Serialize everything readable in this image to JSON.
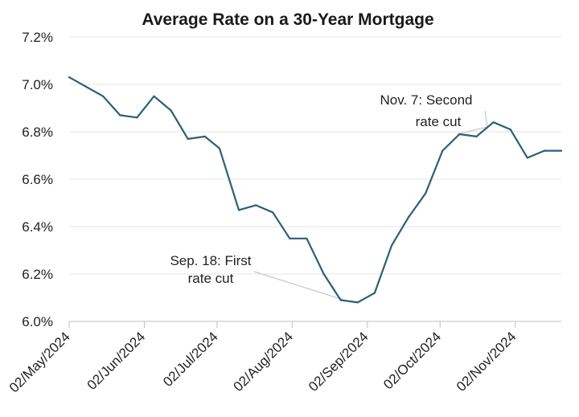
{
  "chart_data": {
    "type": "line",
    "title": "Average Rate on a 30-Year Mortgage",
    "xlabel": "",
    "ylabel": "",
    "ylim": [
      6.0,
      7.2
    ],
    "y_ticks": [
      6.0,
      6.2,
      6.4,
      6.6,
      6.8,
      7.0,
      7.2
    ],
    "y_tick_labels": [
      "6.0%",
      "6.2%",
      "6.4%",
      "6.6%",
      "6.8%",
      "7.0%",
      "7.2%"
    ],
    "x_tick_labels": [
      "02/May/2024",
      "02/Jun/2024",
      "02/Jul/2024",
      "02/Aug/2024",
      "02/Sep/2024",
      "02/Oct/2024",
      "02/Nov/2024"
    ],
    "grid": true,
    "color": "#2b5f7a",
    "series": [
      {
        "x": [
          "2024-05-02",
          "2024-05-09",
          "2024-05-16",
          "2024-05-23",
          "2024-05-30",
          "2024-06-06",
          "2024-06-13",
          "2024-06-20",
          "2024-06-27",
          "2024-07-03",
          "2024-07-11",
          "2024-07-18",
          "2024-07-25",
          "2024-08-01",
          "2024-08-08",
          "2024-08-15",
          "2024-08-22",
          "2024-08-29",
          "2024-09-05",
          "2024-09-12",
          "2024-09-19",
          "2024-09-26",
          "2024-10-03",
          "2024-10-10",
          "2024-10-17",
          "2024-10-24",
          "2024-10-31",
          "2024-11-07",
          "2024-11-14",
          "2024-11-21"
        ],
        "y": [
          7.03,
          6.99,
          6.95,
          6.87,
          6.86,
          6.95,
          6.89,
          6.77,
          6.78,
          6.73,
          6.47,
          6.49,
          6.46,
          6.35,
          6.35,
          6.2,
          6.09,
          6.08,
          6.12,
          6.32,
          6.44,
          6.54,
          6.72,
          6.79,
          6.78,
          6.84,
          6.81,
          6.69,
          6.72,
          6.72
        ]
      }
    ],
    "annotations": [
      {
        "lines": [
          "Sep. 18: First",
          "rate cut"
        ],
        "x": "2024-08-25",
        "y": 6.085
      },
      {
        "lines": [
          "Nov. 7: Second",
          "rate cut"
        ],
        "x": "2024-10-09",
        "y": 6.79
      }
    ]
  }
}
